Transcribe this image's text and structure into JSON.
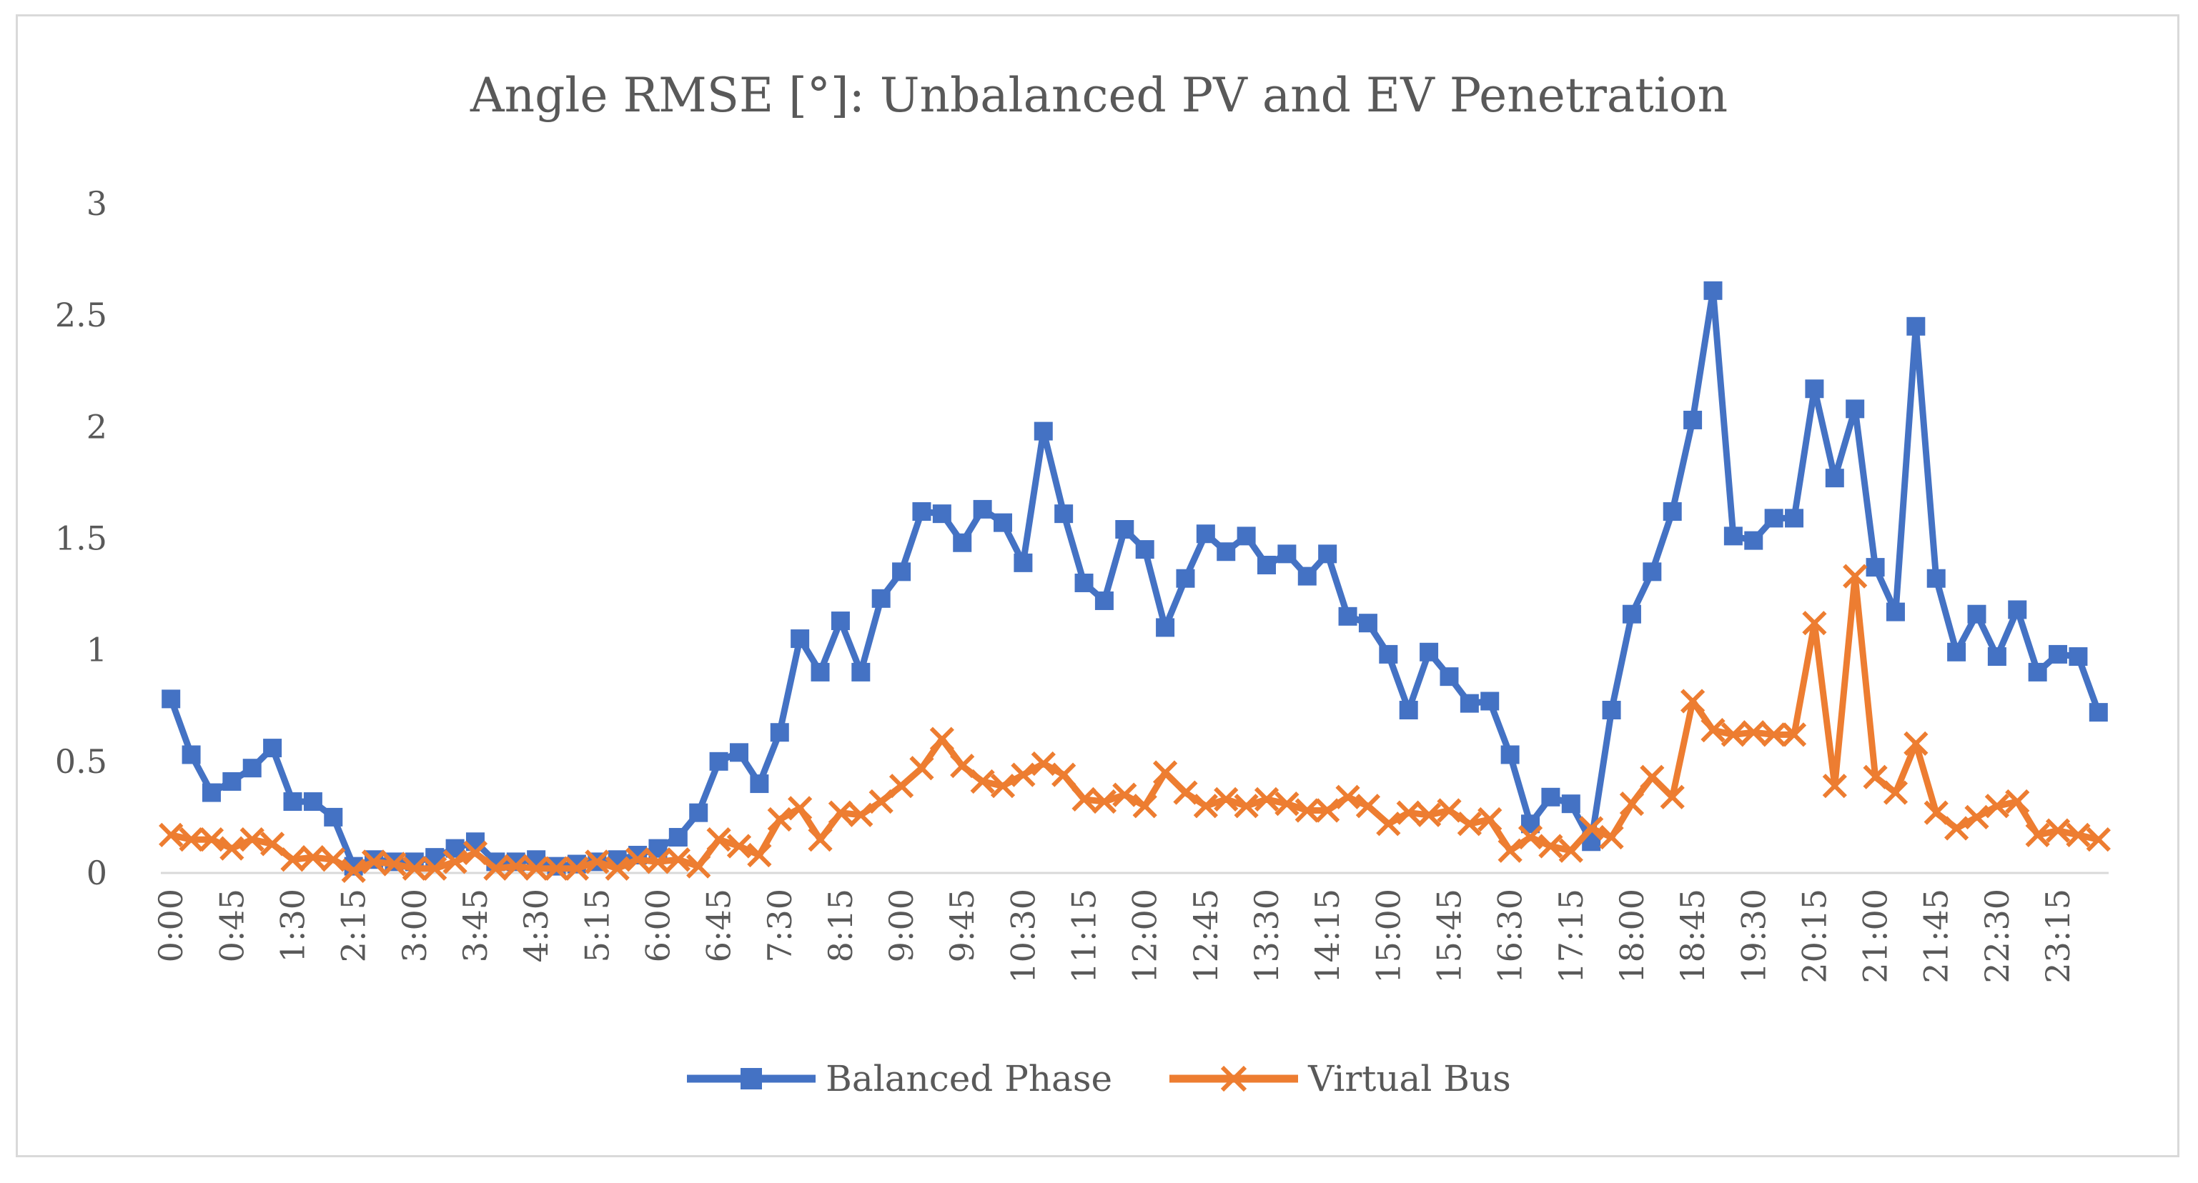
{
  "chart_data": {
    "type": "line",
    "title": "Angle RMSE [°]: Unbalanced PV and EV Penetration",
    "xlabel": "",
    "ylabel": "",
    "ylim": [
      0,
      3
    ],
    "yticks": [
      "0",
      "0.5",
      "1",
      "1.5",
      "2",
      "2.5",
      "3"
    ],
    "ytick_values": [
      0,
      0.5,
      1,
      1.5,
      2,
      2.5,
      3
    ],
    "xtick_labels": [
      "0:00",
      "0:45",
      "1:30",
      "2:15",
      "3:00",
      "3:45",
      "4:30",
      "5:15",
      "6:00",
      "6:45",
      "7:30",
      "8:15",
      "9:00",
      "9:45",
      "10:30",
      "11:15",
      "12:00",
      "12:45",
      "13:30",
      "14:15",
      "15:00",
      "15:45",
      "16:30",
      "17:15",
      "18:00",
      "18:45",
      "19:30",
      "20:15",
      "21:00",
      "21:45",
      "22:30",
      "23:15"
    ],
    "xtick_every": 3,
    "points_per_series": 96,
    "legend_position": "bottom",
    "grid": false,
    "series": [
      {
        "name": "Balanced Phase",
        "color": "#4472c4",
        "marker": "square",
        "values": [
          0.78,
          0.53,
          0.36,
          0.41,
          0.47,
          0.56,
          0.32,
          0.32,
          0.25,
          0.03,
          0.06,
          0.05,
          0.05,
          0.07,
          0.11,
          0.14,
          0.05,
          0.05,
          0.06,
          0.03,
          0.04,
          0.05,
          0.06,
          0.08,
          0.11,
          0.16,
          0.27,
          0.5,
          0.54,
          0.4,
          0.63,
          1.05,
          0.9,
          1.13,
          0.9,
          1.23,
          1.35,
          1.62,
          1.61,
          1.48,
          1.63,
          1.57,
          1.39,
          1.98,
          1.61,
          1.3,
          1.22,
          1.54,
          1.45,
          1.1,
          1.32,
          1.52,
          1.44,
          1.51,
          1.38,
          1.43,
          1.33,
          1.43,
          1.15,
          1.12,
          0.98,
          0.73,
          0.99,
          0.88,
          0.76,
          0.77,
          0.53,
          0.22,
          0.34,
          0.31,
          0.14,
          0.73,
          1.16,
          1.35,
          1.62,
          2.03,
          2.61,
          1.51,
          1.49,
          1.59,
          1.59,
          2.17,
          1.77,
          2.08,
          1.37,
          1.17,
          2.45,
          1.32,
          0.99,
          1.16,
          0.97,
          1.18,
          0.9,
          0.98,
          0.97,
          0.72
        ]
      },
      {
        "name": "Virtual Bus",
        "color": "#ed7d31",
        "marker": "x",
        "values": [
          0.17,
          0.15,
          0.15,
          0.11,
          0.15,
          0.13,
          0.06,
          0.07,
          0.06,
          0.01,
          0.05,
          0.04,
          0.02,
          0.02,
          0.05,
          0.09,
          0.02,
          0.03,
          0.02,
          0.02,
          0.02,
          0.05,
          0.02,
          0.06,
          0.05,
          0.06,
          0.03,
          0.15,
          0.12,
          0.08,
          0.24,
          0.29,
          0.15,
          0.27,
          0.26,
          0.32,
          0.39,
          0.47,
          0.6,
          0.48,
          0.41,
          0.39,
          0.44,
          0.49,
          0.44,
          0.33,
          0.32,
          0.35,
          0.3,
          0.45,
          0.36,
          0.3,
          0.33,
          0.3,
          0.33,
          0.31,
          0.28,
          0.28,
          0.34,
          0.3,
          0.22,
          0.27,
          0.26,
          0.28,
          0.22,
          0.24,
          0.1,
          0.16,
          0.12,
          0.1,
          0.2,
          0.16,
          0.31,
          0.43,
          0.34,
          0.77,
          0.64,
          0.62,
          0.63,
          0.62,
          0.62,
          1.12,
          0.39,
          1.33,
          0.43,
          0.36,
          0.58,
          0.27,
          0.2,
          0.25,
          0.3,
          0.32,
          0.17,
          0.19,
          0.17,
          0.15
        ]
      }
    ]
  }
}
